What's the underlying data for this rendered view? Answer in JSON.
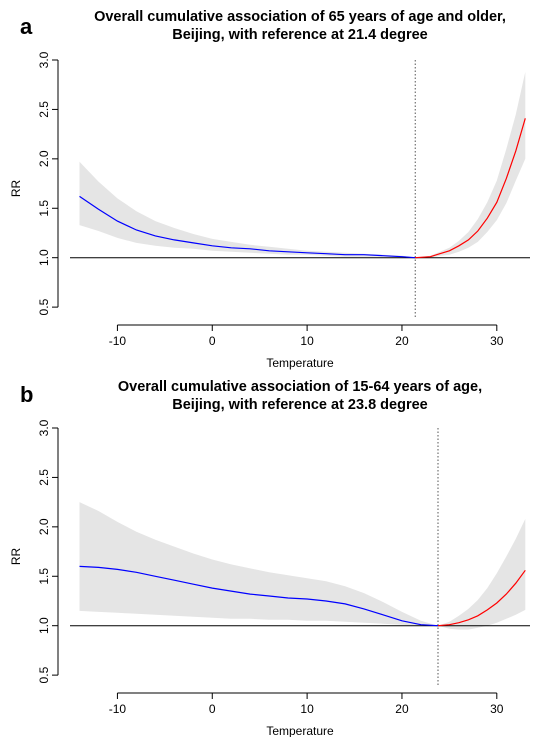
{
  "chart_data": [
    {
      "type": "line",
      "panel_label": "a",
      "title_lines": [
        "Overall cumulative association of 65 years of age and older,",
        "Beijing, with reference at 21.4 degree"
      ],
      "xlabel": "Temperature",
      "ylabel": "RR",
      "xlim": [
        -15,
        33.5
      ],
      "ylim": [
        0.4,
        3.0
      ],
      "x_ticks": [
        -10,
        0,
        10,
        20,
        30
      ],
      "y_ticks": [
        0.5,
        1.0,
        1.5,
        2.0,
        2.5,
        3.0
      ],
      "reference_temperature": 21.4,
      "reference_rr": 1.0,
      "grid": false,
      "colors": {
        "cold": "#0000ff",
        "heat": "#ff0000",
        "ci_band": "#e5e5e5",
        "reference_line": "#555555"
      },
      "series": [
        {
          "x": [
            -14,
            -12,
            -10,
            -8,
            -6,
            -4,
            -2,
            0,
            2,
            4,
            6,
            8,
            10,
            12,
            14,
            16,
            18,
            20,
            21.4
          ],
          "y": [
            1.62,
            1.49,
            1.37,
            1.28,
            1.22,
            1.18,
            1.15,
            1.12,
            1.1,
            1.09,
            1.07,
            1.06,
            1.05,
            1.04,
            1.03,
            1.03,
            1.02,
            1.01,
            1.0
          ],
          "color": "#0000ff"
        },
        {
          "x": [
            21.4,
            23,
            24,
            25,
            26,
            27,
            28,
            29,
            30,
            31,
            32,
            33
          ],
          "y": [
            1.0,
            1.01,
            1.04,
            1.07,
            1.12,
            1.18,
            1.27,
            1.4,
            1.56,
            1.8,
            2.08,
            2.41
          ],
          "color": "#ff0000"
        }
      ],
      "ci_band": {
        "x": [
          -14,
          -12,
          -10,
          -8,
          -6,
          -4,
          -2,
          0,
          2,
          4,
          6,
          8,
          10,
          12,
          14,
          16,
          18,
          20,
          21.4,
          23,
          24,
          25,
          26,
          27,
          28,
          29,
          30,
          31,
          32,
          33
        ],
        "lower": [
          1.33,
          1.27,
          1.2,
          1.15,
          1.12,
          1.1,
          1.09,
          1.07,
          1.06,
          1.05,
          1.04,
          1.03,
          1.03,
          1.02,
          1.01,
          1.01,
          1.01,
          1.0,
          1.0,
          1.0,
          1.02,
          1.03,
          1.06,
          1.1,
          1.16,
          1.26,
          1.38,
          1.55,
          1.78,
          2.0
        ],
        "upper": [
          1.97,
          1.77,
          1.6,
          1.47,
          1.37,
          1.3,
          1.24,
          1.19,
          1.16,
          1.13,
          1.11,
          1.09,
          1.07,
          1.06,
          1.05,
          1.04,
          1.03,
          1.02,
          1.0,
          1.02,
          1.06,
          1.1,
          1.17,
          1.26,
          1.39,
          1.56,
          1.78,
          2.1,
          2.45,
          2.88
        ]
      }
    },
    {
      "type": "line",
      "panel_label": "b",
      "title_lines": [
        "Overall cumulative association of 15-64 years of age,",
        "Beijing, with reference at 23.8 degree"
      ],
      "xlabel": "Temperature",
      "ylabel": "RR",
      "xlim": [
        -15,
        33.5
      ],
      "ylim": [
        0.4,
        3.0
      ],
      "x_ticks": [
        -10,
        0,
        10,
        20,
        30
      ],
      "y_ticks": [
        0.5,
        1.0,
        1.5,
        2.0,
        2.5,
        3.0
      ],
      "reference_temperature": 23.8,
      "reference_rr": 1.0,
      "grid": false,
      "colors": {
        "cold": "#0000ff",
        "heat": "#ff0000",
        "ci_band": "#e5e5e5",
        "reference_line": "#555555"
      },
      "series": [
        {
          "x": [
            -14,
            -12,
            -10,
            -8,
            -6,
            -4,
            -2,
            0,
            2,
            4,
            6,
            8,
            10,
            12,
            14,
            16,
            18,
            20,
            22,
            23.8
          ],
          "y": [
            1.6,
            1.59,
            1.57,
            1.54,
            1.5,
            1.46,
            1.42,
            1.38,
            1.35,
            1.32,
            1.3,
            1.28,
            1.27,
            1.25,
            1.22,
            1.17,
            1.11,
            1.05,
            1.01,
            1.0
          ],
          "color": "#0000ff"
        },
        {
          "x": [
            23.8,
            25,
            26,
            27,
            28,
            29,
            30,
            31,
            32,
            33
          ],
          "y": [
            1.0,
            1.01,
            1.03,
            1.06,
            1.1,
            1.16,
            1.23,
            1.32,
            1.43,
            1.56
          ],
          "color": "#ff0000"
        }
      ],
      "ci_band": {
        "x": [
          -14,
          -12,
          -10,
          -8,
          -6,
          -4,
          -2,
          0,
          2,
          4,
          6,
          8,
          10,
          12,
          14,
          16,
          18,
          20,
          22,
          23.8,
          25,
          26,
          27,
          28,
          29,
          30,
          31,
          32,
          33
        ],
        "lower": [
          1.15,
          1.14,
          1.13,
          1.12,
          1.11,
          1.1,
          1.09,
          1.08,
          1.07,
          1.07,
          1.06,
          1.06,
          1.05,
          1.05,
          1.04,
          1.03,
          1.02,
          1.01,
          1.0,
          1.0,
          0.97,
          0.96,
          0.96,
          0.98,
          1.0,
          1.03,
          1.07,
          1.11,
          1.16
        ],
        "upper": [
          2.25,
          2.16,
          2.05,
          1.95,
          1.87,
          1.8,
          1.73,
          1.67,
          1.62,
          1.58,
          1.54,
          1.51,
          1.48,
          1.45,
          1.4,
          1.33,
          1.24,
          1.14,
          1.05,
          1.0,
          1.04,
          1.1,
          1.17,
          1.26,
          1.38,
          1.53,
          1.7,
          1.88,
          2.08
        ]
      }
    }
  ]
}
